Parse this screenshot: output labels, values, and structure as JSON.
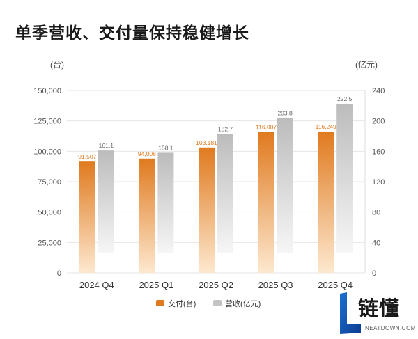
{
  "title": "单季营收、交付量保持稳健增长",
  "logo": {
    "cn": "链懂",
    "en": "NEATDOWN.COM"
  },
  "colors": {
    "deliveries": "#e07a1f",
    "revenue": "#bdbdbd"
  },
  "chart_data": {
    "type": "bar",
    "title": "单季营收、交付量保持稳健增长",
    "categories": [
      "2024 Q4",
      "2025 Q1",
      "2025 Q2",
      "2025 Q3",
      "2025 Q4"
    ],
    "series": [
      {
        "name": "交付(台)",
        "axis": "left",
        "values": [
          91507,
          94008,
          103181,
          116007,
          116249
        ],
        "labels": [
          "91,507",
          "94,008",
          "103,181",
          "116,007",
          "116,249"
        ]
      },
      {
        "name": "营收(亿元)",
        "axis": "right",
        "values": [
          161.1,
          158.1,
          182.7,
          203.8,
          222.5
        ],
        "labels": [
          "161.1",
          "158.1",
          "182.7",
          "203.8",
          "222.5"
        ]
      }
    ],
    "left_axis": {
      "unit": "(台)",
      "ylim": [
        0,
        150000
      ],
      "ticks": [
        0,
        25000,
        50000,
        75000,
        100000,
        125000,
        150000
      ],
      "tick_labels": [
        "0",
        "25,000",
        "50,000",
        "75,000",
        "100,000",
        "125,000",
        "150,000"
      ]
    },
    "right_axis": {
      "unit": "(亿元)",
      "ylim": [
        0,
        240
      ],
      "ticks": [
        0,
        40,
        80,
        120,
        160,
        200,
        240
      ],
      "tick_labels": [
        "0",
        "40",
        "80",
        "120",
        "160",
        "200",
        "240"
      ]
    },
    "grid": "horizontal",
    "legend": "bottom-center"
  }
}
